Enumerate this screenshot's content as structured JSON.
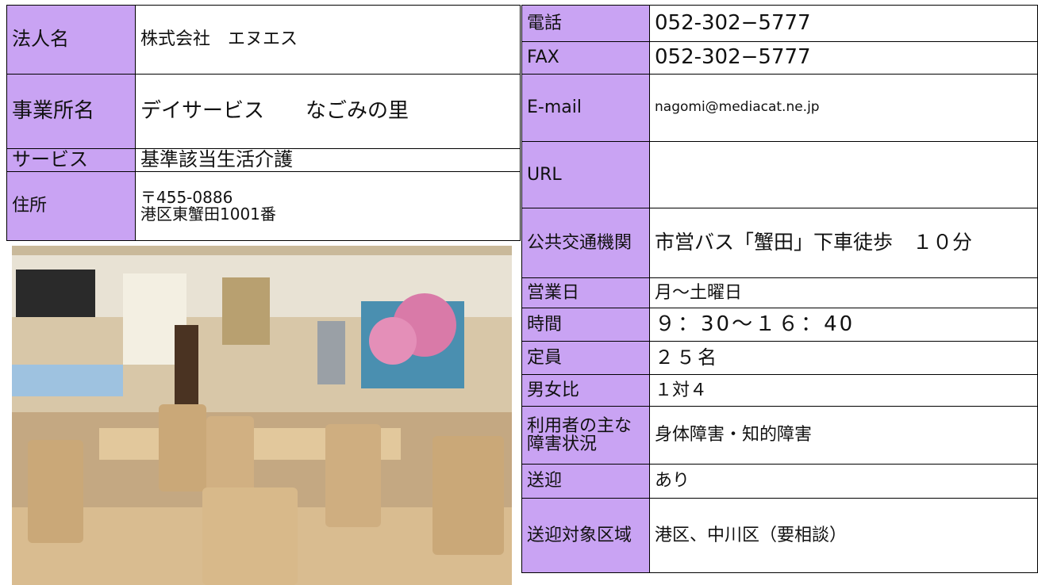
{
  "left_table": {
    "rows": [
      {
        "label": "法人名",
        "value": "株式会社　エヌエス"
      },
      {
        "label": "事業所名",
        "value": "デイサービス　　なごみの里"
      },
      {
        "label": "サービス",
        "value": "基準該当生活介護"
      },
      {
        "label": "住所",
        "value": [
          "〒455-0886",
          "港区東蟹田1001番"
        ]
      }
    ]
  },
  "right_table": {
    "rows": [
      {
        "label": "電話",
        "value": "052-302−5777"
      },
      {
        "label": "FAX",
        "value": "052-302−5777"
      },
      {
        "label": "E-mail",
        "value": "nagomi@mediacat.ne.jp"
      },
      {
        "label": "URL",
        "value": ""
      },
      {
        "label": "公共交通機関",
        "value": "市営バス「蟹田」下車徒歩　１０分"
      },
      {
        "label": "営業日",
        "value": "月〜土曜日"
      },
      {
        "label": "時間",
        "value": "９：30〜１６：40"
      },
      {
        "label": "定員",
        "value": "２５名"
      },
      {
        "label": "男女比",
        "value": "１対４"
      },
      {
        "label": "利用者の主な障害状況",
        "value": "身体障害・知的障害"
      },
      {
        "label": "送迎",
        "value": "あり"
      },
      {
        "label": "送迎対象区域",
        "value": "港区、中川区（要相談）"
      }
    ]
  }
}
